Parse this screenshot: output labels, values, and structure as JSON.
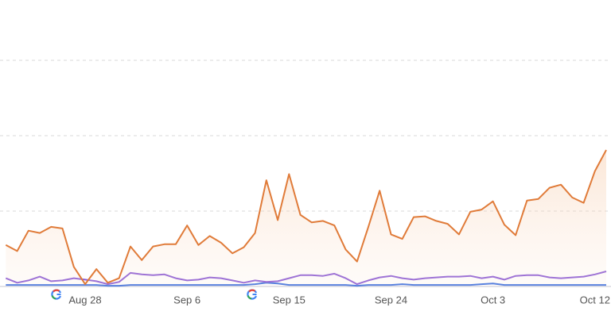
{
  "chart_data": {
    "type": "line",
    "categories": [
      null,
      null,
      null,
      null,
      null,
      null,
      null,
      "Aug 28",
      null,
      null,
      null,
      null,
      null,
      null,
      null,
      null,
      "Sep 6",
      null,
      null,
      null,
      null,
      null,
      null,
      null,
      null,
      "Sep 15",
      null,
      null,
      null,
      null,
      null,
      null,
      null,
      null,
      "Sep 24",
      null,
      null,
      null,
      null,
      null,
      null,
      null,
      null,
      "Oct 3",
      null,
      null,
      null,
      null,
      null,
      null,
      null,
      null,
      "Oct 12",
      null
    ],
    "series": [
      {
        "color": "#3b6fe0",
        "values": [
          0.02,
          0.02,
          0.02,
          0.02,
          0.02,
          0.02,
          0.02,
          0.02,
          0.02,
          0.01,
          0.01,
          0.02,
          0.02,
          0.02,
          0.02,
          0.02,
          0.02,
          0.02,
          0.02,
          0.02,
          0.02,
          0.02,
          0.03,
          0.05,
          0.04,
          0.02,
          0.02,
          0.02,
          0.02,
          0.02,
          0.02,
          0.01,
          0.02,
          0.02,
          0.02,
          0.03,
          0.02,
          0.02,
          0.02,
          0.02,
          0.02,
          0.02,
          0.03,
          0.04,
          0.02,
          0.02,
          0.02,
          0.02,
          0.02,
          0.02,
          0.02,
          0.02,
          0.02,
          0.02
        ]
      },
      {
        "color": "#8b5cd6",
        "values": [
          0.11,
          0.05,
          0.08,
          0.13,
          0.07,
          0.08,
          0.11,
          0.09,
          0.07,
          0.03,
          0.06,
          0.18,
          0.16,
          0.15,
          0.16,
          0.11,
          0.08,
          0.09,
          0.12,
          0.11,
          0.08,
          0.05,
          0.08,
          0.06,
          0.07,
          0.11,
          0.15,
          0.15,
          0.14,
          0.17,
          0.11,
          0.03,
          0.08,
          0.12,
          0.14,
          0.11,
          0.09,
          0.11,
          0.12,
          0.13,
          0.13,
          0.14,
          0.11,
          0.13,
          0.09,
          0.14,
          0.15,
          0.15,
          0.12,
          0.11,
          0.12,
          0.13,
          0.16,
          0.2
        ]
      },
      {
        "color": "#e07b39",
        "area": true,
        "values": [
          0.55,
          0.47,
          0.74,
          0.71,
          0.79,
          0.77,
          0.26,
          0.03,
          0.23,
          0.05,
          0.11,
          0.53,
          0.35,
          0.53,
          0.56,
          0.56,
          0.81,
          0.55,
          0.67,
          0.58,
          0.44,
          0.52,
          0.71,
          1.41,
          0.88,
          1.49,
          0.95,
          0.85,
          0.87,
          0.81,
          0.49,
          0.33,
          0.79,
          1.27,
          0.69,
          0.63,
          0.92,
          0.93,
          0.87,
          0.83,
          0.69,
          0.99,
          1.02,
          1.13,
          0.82,
          0.68,
          1.14,
          1.16,
          1.31,
          1.35,
          1.18,
          1.11,
          1.53,
          1.81
        ]
      }
    ],
    "ylim": [
      0,
      3.8
    ],
    "yticks": [
      0,
      1,
      2,
      3
    ],
    "grid": true
  }
}
